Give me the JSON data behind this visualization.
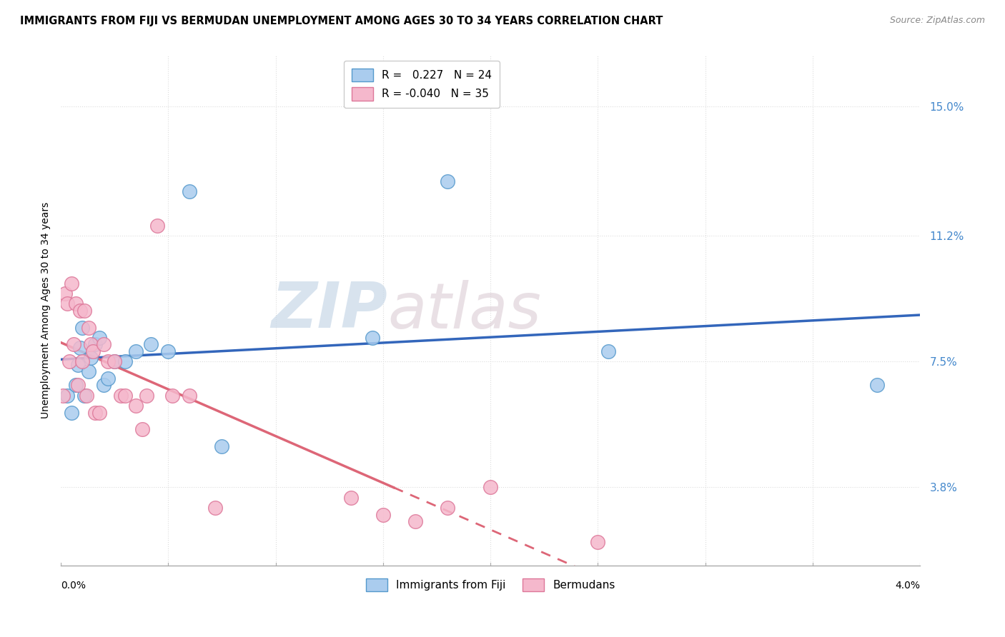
{
  "title": "IMMIGRANTS FROM FIJI VS BERMUDAN UNEMPLOYMENT AMONG AGES 30 TO 34 YEARS CORRELATION CHART",
  "source": "Source: ZipAtlas.com",
  "ylabel": "Unemployment Among Ages 30 to 34 years",
  "y_ticks": [
    3.8,
    7.5,
    11.2,
    15.0
  ],
  "y_tick_labels": [
    "3.8%",
    "7.5%",
    "11.2%",
    "15.0%"
  ],
  "x_min": 0.0,
  "x_max": 4.0,
  "y_min": 1.5,
  "y_max": 16.5,
  "fiji_R": 0.227,
  "fiji_N": 24,
  "bermuda_R": -0.04,
  "bermuda_N": 35,
  "fiji_color": "#aaccee",
  "fiji_edge_color": "#5599cc",
  "bermuda_color": "#f5b8cc",
  "bermuda_edge_color": "#dd7799",
  "trend_fiji_color": "#3366bb",
  "trend_bermuda_color": "#dd6677",
  "watermark_zip": "ZIP",
  "watermark_atlas": "atlas",
  "fiji_x": [
    0.03,
    0.05,
    0.07,
    0.08,
    0.09,
    0.1,
    0.11,
    0.13,
    0.14,
    0.16,
    0.18,
    0.2,
    0.22,
    0.25,
    0.3,
    0.35,
    0.42,
    0.5,
    0.6,
    0.75,
    1.45,
    1.8,
    2.55,
    3.8
  ],
  "fiji_y": [
    6.5,
    6.0,
    6.8,
    7.4,
    7.9,
    8.5,
    6.5,
    7.2,
    7.6,
    8.0,
    8.2,
    6.8,
    7.0,
    7.5,
    7.5,
    7.8,
    8.0,
    7.8,
    12.5,
    5.0,
    8.2,
    12.8,
    7.8,
    6.8
  ],
  "bermuda_x": [
    0.01,
    0.02,
    0.03,
    0.04,
    0.05,
    0.06,
    0.07,
    0.08,
    0.09,
    0.1,
    0.11,
    0.12,
    0.13,
    0.14,
    0.15,
    0.16,
    0.18,
    0.2,
    0.22,
    0.25,
    0.28,
    0.3,
    0.35,
    0.38,
    0.4,
    0.45,
    0.52,
    0.6,
    0.72,
    1.35,
    1.5,
    1.65,
    1.8,
    2.0,
    2.5
  ],
  "bermuda_y": [
    6.5,
    9.5,
    9.2,
    7.5,
    9.8,
    8.0,
    9.2,
    6.8,
    9.0,
    7.5,
    9.0,
    6.5,
    8.5,
    8.0,
    7.8,
    6.0,
    6.0,
    8.0,
    7.5,
    7.5,
    6.5,
    6.5,
    6.2,
    5.5,
    6.5,
    11.5,
    6.5,
    6.5,
    3.2,
    3.5,
    3.0,
    2.8,
    3.2,
    3.8,
    2.2
  ],
  "bermuda_solid_max_x": 1.55,
  "grid_color": "#dddddd",
  "grid_style": "dotted"
}
